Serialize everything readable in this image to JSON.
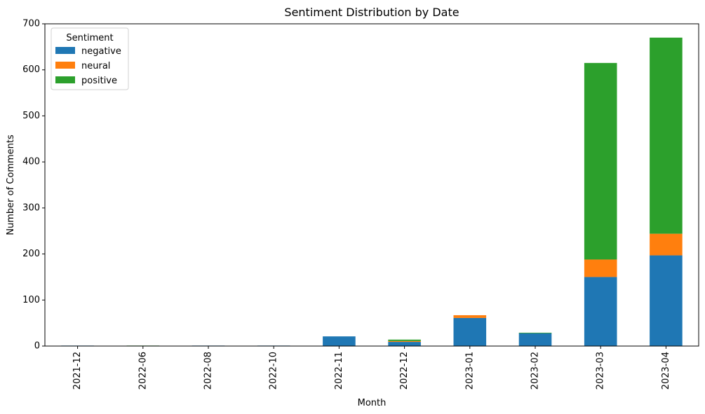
{
  "chart_data": {
    "type": "bar",
    "stacked": true,
    "title": "Sentiment Distribution by Date",
    "xlabel": "Month",
    "ylabel": "Number of Comments",
    "ylim": [
      0,
      700
    ],
    "yticks": [
      0,
      100,
      200,
      300,
      400,
      500,
      600,
      700
    ],
    "categories": [
      "2021-12",
      "2022-06",
      "2022-08",
      "2022-10",
      "2022-11",
      "2022-12",
      "2023-01",
      "2023-02",
      "2023-03",
      "2023-04"
    ],
    "series": [
      {
        "name": "negative",
        "color": "#1f77b4",
        "values": [
          1,
          0,
          1,
          1,
          21,
          9,
          61,
          28,
          150,
          197
        ]
      },
      {
        "name": "neural",
        "color": "#ff7f0e",
        "values": [
          0,
          0,
          0,
          0,
          0,
          2,
          6,
          0,
          38,
          47
        ]
      },
      {
        "name": "positive",
        "color": "#2ca02c",
        "values": [
          0,
          1,
          0,
          0,
          0,
          3,
          0,
          1,
          427,
          426
        ]
      }
    ],
    "legend": {
      "title": "Sentiment",
      "placement": "top-left"
    },
    "grid": false
  }
}
